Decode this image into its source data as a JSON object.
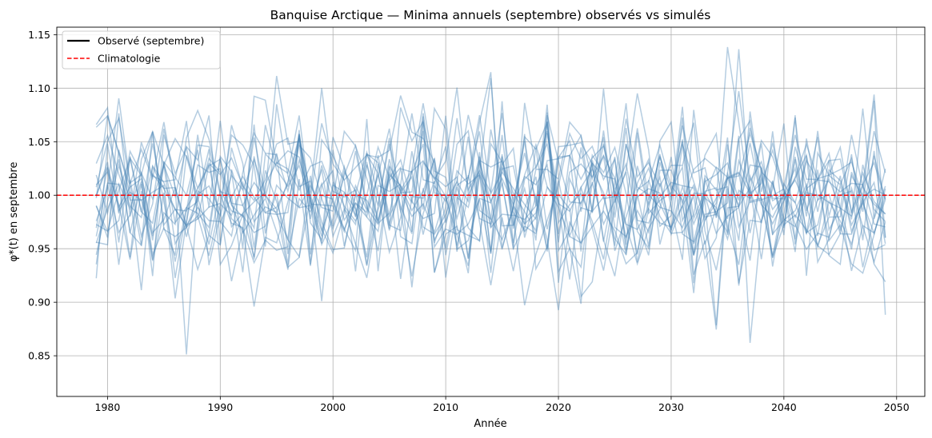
{
  "chart_data": {
    "type": "line",
    "title": "Banquise Arctique — Minima annuels (septembre) observés vs simulés",
    "xlabel": "Année",
    "ylabel": "φ*(t) en septembre",
    "xlim": [
      1975.5,
      2052.5
    ],
    "ylim": [
      0.812,
      1.157
    ],
    "x_ticks": [
      1980,
      1990,
      2000,
      2010,
      2020,
      2030,
      2040,
      2050
    ],
    "y_ticks": [
      0.85,
      0.9,
      0.95,
      1.0,
      1.05,
      1.1,
      1.15
    ],
    "grid": true,
    "legend": {
      "placement": "top-left",
      "entries": [
        {
          "label": "Observé (septembre)",
          "color": "#000000",
          "style": "solid"
        },
        {
          "label": "Climatologie",
          "color": "#ff0000",
          "style": "dashed"
        }
      ]
    },
    "climatology": {
      "value": 1.0,
      "color": "#ff0000"
    },
    "simulations": {
      "color": "#4682b4",
      "opacity": 0.4,
      "count": 20,
      "x_start": 1979,
      "x_end": 2049,
      "mean": 1.0,
      "std": 0.04,
      "seed": 20240917
    }
  }
}
